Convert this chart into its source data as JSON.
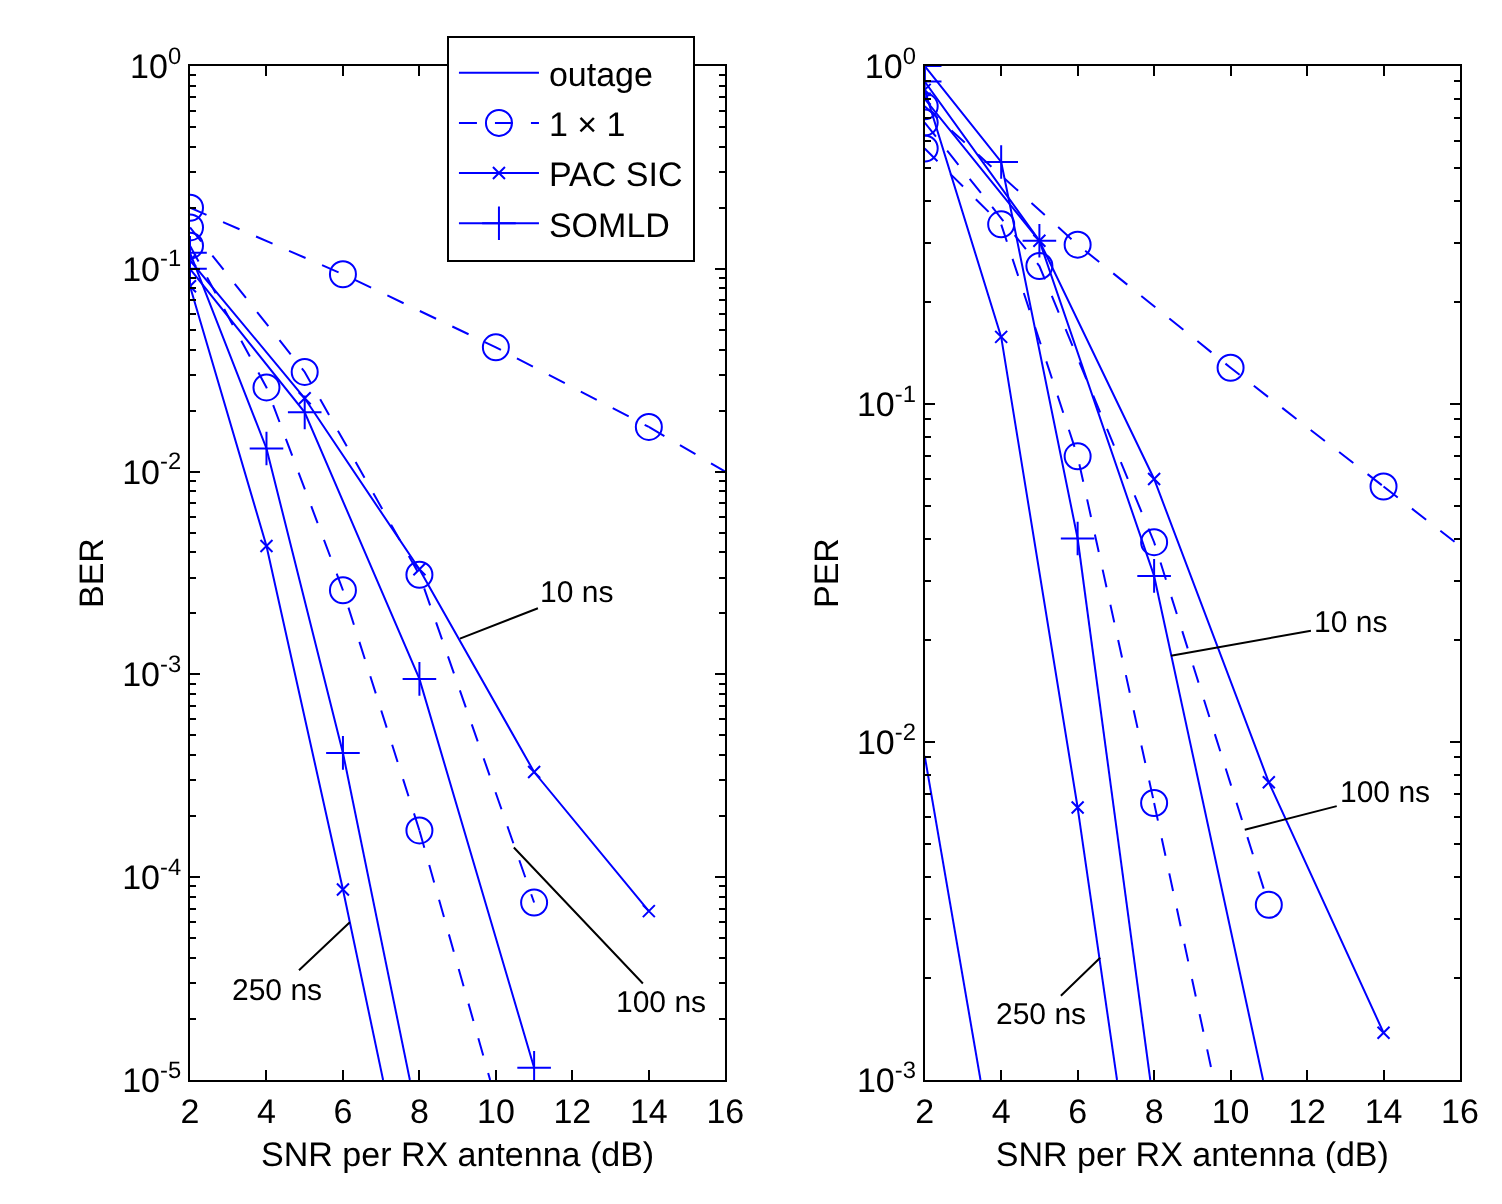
{
  "chart_data": [
    {
      "type": "line",
      "xlabel": "SNR per RX antenna (dB)",
      "ylabel": "BER",
      "log": true,
      "legend": "top right",
      "xlim": [
        2,
        16
      ],
      "xticks": [
        2,
        4,
        6,
        8,
        10,
        12,
        14,
        16
      ],
      "ylim": [
        1e-05,
        1
      ],
      "yticks": [
        {
          "value": 1e-05,
          "label": "10$^{-5}$"
        },
        {
          "value": 0.0001,
          "label": "10$^{-4}$"
        },
        {
          "value": 0.001,
          "label": "10$^{-3}$"
        },
        {
          "value": 0.01,
          "label": "10$^{-2}$"
        },
        {
          "value": 0.1,
          "label": "10$^{-1}$"
        },
        {
          "value": 1,
          "label": "10$^{0}$"
        }
      ],
      "series": [
        {
          "name": "1 × 1",
          "color": "#0000ff",
          "line_style": "dashed",
          "marker": "circle",
          "x": [
            2,
            6,
            10,
            14
          ],
          "values": [
            0.2,
            0.094,
            0.041,
            0.0166
          ]
        },
        {
          "color": "#0000ff",
          "line_style": "dashed",
          "marker": "none",
          "x": [
            14,
            16
          ],
          "values": [
            0.0166,
            0.01
          ]
        },
        {
          "color": "#0000ff",
          "line_style": "dashed",
          "marker": "circle",
          "x": [
            2,
            5,
            8,
            11
          ],
          "values": [
            0.16,
            0.031,
            0.0031,
            7.5e-05
          ]
        },
        {
          "color": "#0000ff",
          "line_style": "dashed",
          "marker": "circle",
          "x": [
            2,
            4,
            6,
            8
          ],
          "values": [
            0.13,
            0.026,
            0.0026,
            0.00017
          ]
        },
        {
          "color": "#0000ff",
          "line_style": "dashed",
          "marker": "none",
          "x": [
            8,
            9.85
          ],
          "values": [
            0.00017,
            1e-05
          ]
        },
        {
          "name": "PAC SIC",
          "color": "#0000ff",
          "line_style": "solid",
          "marker": "cross",
          "x": [
            2,
            5,
            8,
            11,
            14
          ],
          "values": [
            0.11,
            0.023,
            0.0033,
            0.00033,
            6.8e-05
          ]
        },
        {
          "color": "#0000ff",
          "line_style": "solid",
          "marker": "cross",
          "x": [
            2,
            4,
            6
          ],
          "values": [
            0.082,
            0.0043,
            8.7e-05
          ]
        },
        {
          "color": "#0000ff",
          "line_style": "solid",
          "marker": "none",
          "x": [
            6,
            7.05
          ],
          "values": [
            8.7e-05,
            1e-05
          ]
        },
        {
          "name": "SOMLD",
          "color": "#0000ff",
          "line_style": "solid",
          "marker": "plus",
          "x": [
            2,
            5,
            8,
            11
          ],
          "values": [
            0.1,
            0.0196,
            0.00095,
            1.15e-05
          ]
        },
        {
          "color": "#0000ff",
          "line_style": "solid",
          "marker": "plus",
          "x": [
            2,
            4,
            6
          ],
          "values": [
            0.12,
            0.013,
            0.00041
          ]
        },
        {
          "color": "#0000ff",
          "line_style": "solid",
          "marker": "none",
          "x": [
            6,
            7.75
          ],
          "values": [
            0.00041,
            1e-05
          ]
        }
      ],
      "annotations": [
        {
          "text": "10 ns",
          "x": 9.06,
          "y": 0.0015
        },
        {
          "text": "100 ns",
          "x": 10.47,
          "y": 0.00014
        },
        {
          "text": "250 ns",
          "x": 6.18,
          "y": 6e-05
        }
      ]
    },
    {
      "type": "line",
      "xlabel": "SNR per RX antenna (dB)",
      "ylabel": "PER",
      "log": true,
      "legend": "top left",
      "xlim": [
        2,
        16
      ],
      "xticks": [
        2,
        4,
        6,
        8,
        10,
        12,
        14,
        16
      ],
      "ylim": [
        0.001,
        1
      ],
      "yticks": [
        {
          "value": 0.001,
          "label": "10$^{-3}$"
        },
        {
          "value": 0.01,
          "label": "10$^{-2}$"
        },
        {
          "value": 0.1,
          "label": "10$^{-1}$"
        },
        {
          "value": 1,
          "label": "10$^{0}$"
        }
      ],
      "series": [
        {
          "name": "outage",
          "color": "#0000ff",
          "line_style": "solid",
          "marker": "none",
          "x": [
            2,
            3.46
          ],
          "values": [
            0.0091,
            0.001
          ]
        },
        {
          "color": "#0000ff",
          "line_style": "dashed",
          "marker": "circle",
          "x": [
            2,
            6,
            10,
            14
          ],
          "values": [
            0.76,
            0.296,
            0.128,
            0.057
          ]
        },
        {
          "color": "#0000ff",
          "line_style": "dashed",
          "marker": "none",
          "x": [
            14,
            16
          ],
          "values": [
            0.057,
            0.038
          ]
        },
        {
          "color": "#0000ff",
          "line_style": "dashed",
          "marker": "circle",
          "x": [
            2,
            5,
            8,
            11
          ],
          "values": [
            0.68,
            0.256,
            0.039,
            0.0033
          ]
        },
        {
          "color": "#0000ff",
          "line_style": "dashed",
          "marker": "circle",
          "x": [
            2,
            4,
            6,
            8
          ],
          "values": [
            0.57,
            0.34,
            0.07,
            0.0066
          ]
        },
        {
          "color": "#0000ff",
          "line_style": "dashed",
          "marker": "none",
          "x": [
            8,
            9.56
          ],
          "values": [
            0.0066,
            0.001
          ]
        },
        {
          "color": "#0000ff",
          "line_style": "solid",
          "marker": "cross",
          "x": [
            2,
            5,
            8,
            11,
            14
          ],
          "values": [
            0.8,
            0.304,
            0.06,
            0.0076,
            0.00138
          ]
        },
        {
          "color": "#0000ff",
          "line_style": "solid",
          "marker": "cross",
          "x": [
            2,
            4,
            6
          ],
          "values": [
            0.85,
            0.158,
            0.0064
          ]
        },
        {
          "color": "#0000ff",
          "line_style": "solid",
          "marker": "none",
          "x": [
            6,
            7.03
          ],
          "values": [
            0.0064,
            0.001
          ]
        },
        {
          "color": "#0000ff",
          "line_style": "solid",
          "marker": "plus",
          "x": [
            2,
            5,
            8
          ],
          "values": [
            0.9,
            0.304,
            0.031
          ]
        },
        {
          "color": "#0000ff",
          "line_style": "solid",
          "marker": "none",
          "x": [
            8,
            10.85
          ],
          "values": [
            0.031,
            0.001
          ]
        },
        {
          "color": "#0000ff",
          "line_style": "solid",
          "marker": "plus",
          "x": [
            2,
            4,
            6
          ],
          "values": [
            1.0,
            0.52,
            0.04
          ]
        },
        {
          "color": "#0000ff",
          "line_style": "solid",
          "marker": "none",
          "x": [
            6,
            7.9
          ],
          "values": [
            0.04,
            0.001
          ]
        }
      ],
      "annotations": [
        {
          "text": "10 ns",
          "x": 8.44,
          "y": 0.018
        },
        {
          "text": "100 ns",
          "x": 10.37,
          "y": 0.0055
        },
        {
          "text": "250 ns",
          "x": 6.59,
          "y": 0.0023
        }
      ]
    }
  ]
}
